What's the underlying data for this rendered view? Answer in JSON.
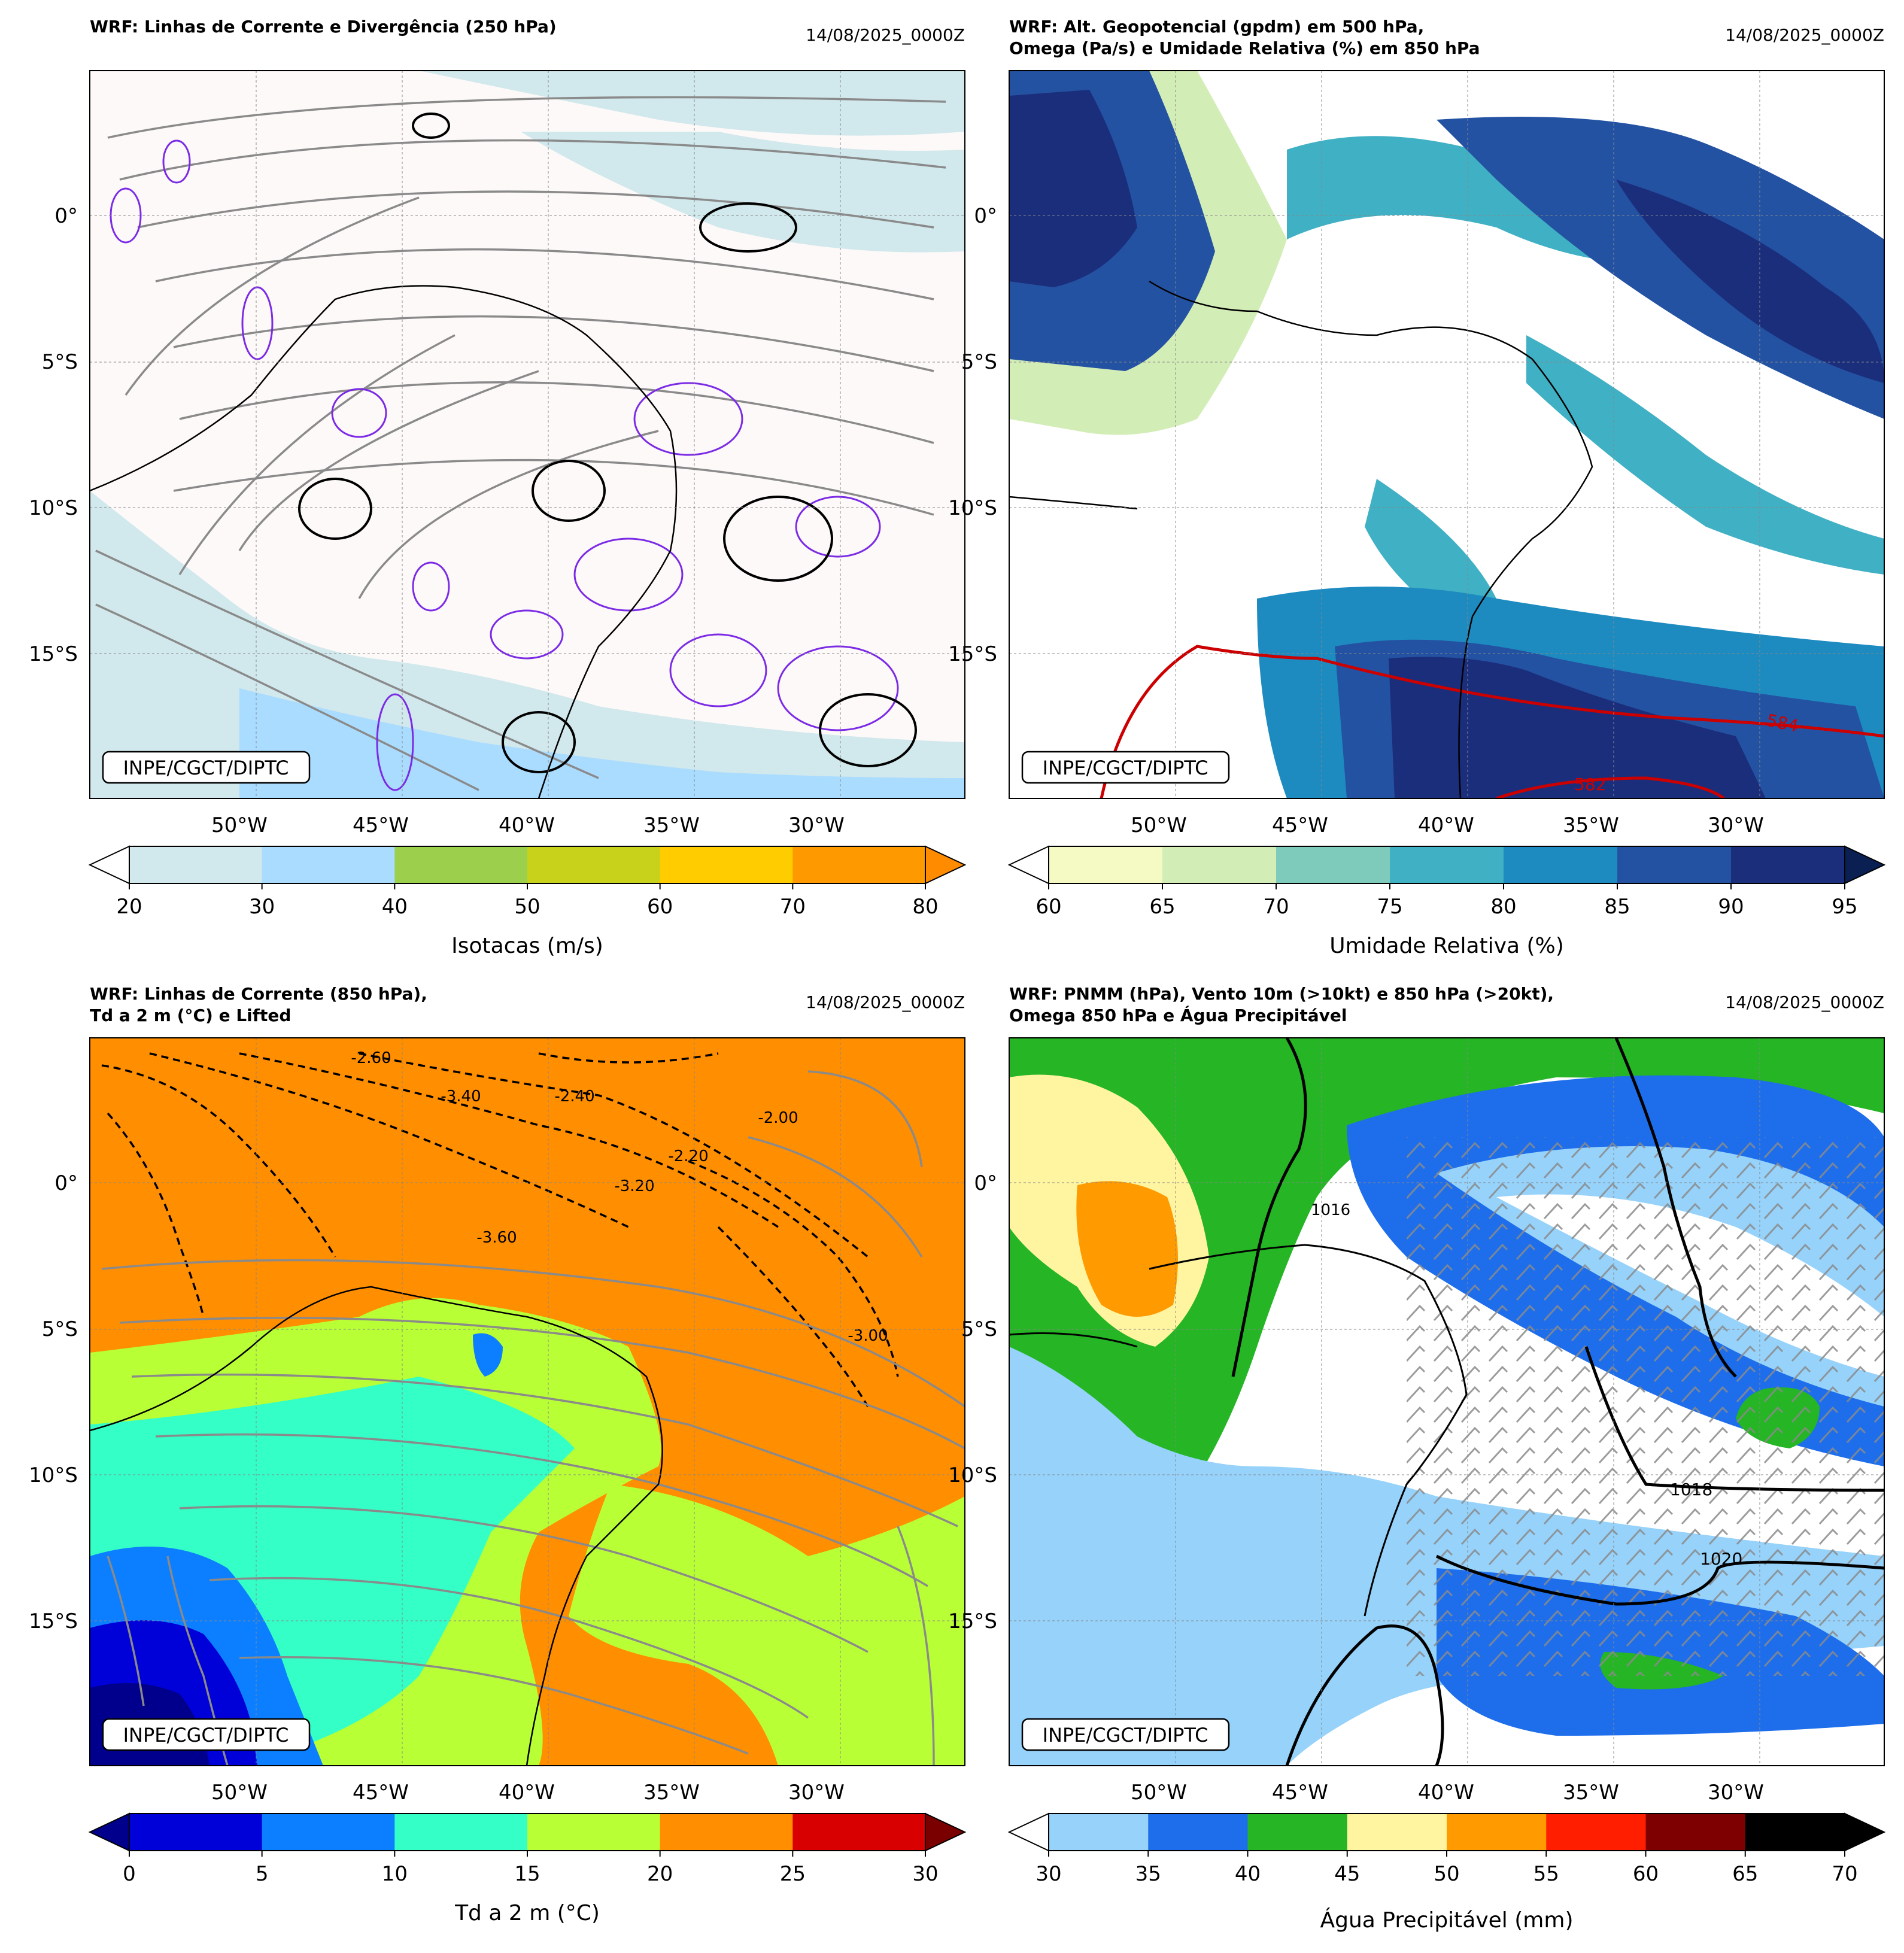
{
  "panels": [
    {
      "id": "p1",
      "title_lines": [
        "WRF: Linhas de Corrente e Divergência (250 hPa)"
      ],
      "datetime": "14/08/2025_0000Z",
      "credit": "INPE/CGCT/DIPTC",
      "lon_ticks": [
        "50°W",
        "45°W",
        "40°W",
        "35°W",
        "30°W"
      ],
      "lat_ticks": [
        "0°",
        "5°S",
        "10°S",
        "15°S"
      ],
      "colorbar": {
        "label": "Isotacas (m/s)",
        "ticks": [
          "20",
          "30",
          "40",
          "50",
          "60",
          "70",
          "80"
        ],
        "colors": [
          "#d1e8ec",
          "#aadcff",
          "#9ccf4c",
          "#c8d21a",
          "#ffcc00",
          "#ff9900"
        ],
        "under_color": "#ffffff",
        "over_color": "#ff8c00"
      }
    },
    {
      "id": "p2",
      "title_lines": [
        "WRF: Alt. Geopotencial (gpdm) em 500 hPa,",
        "Omega (Pa/s) e Umidade Relativa (%) em 850 hPa"
      ],
      "datetime": "14/08/2025_0000Z",
      "credit": "INPE/CGCT/DIPTC",
      "lon_ticks": [
        "50°W",
        "45°W",
        "40°W",
        "35°W",
        "30°W"
      ],
      "lat_ticks": [
        "0°",
        "5°S",
        "10°S",
        "15°S"
      ],
      "contour_labels": [
        "584",
        "582"
      ],
      "colorbar": {
        "label": "Umidade Relativa (%)",
        "ticks": [
          "60",
          "65",
          "70",
          "75",
          "80",
          "85",
          "90",
          "95"
        ],
        "colors": [
          "#f5f9c4",
          "#d3edb7",
          "#7ecbbb",
          "#40b0c4",
          "#1d8bc0",
          "#2452a2",
          "#1b2e7c"
        ],
        "under_color": "#ffffff",
        "over_color": "#0a1f52"
      }
    },
    {
      "id": "p3",
      "title_lines": [
        "WRF: Linhas de Corrente (850 hPa),",
        "Td a 2 m (°C) e Lifted"
      ],
      "datetime": "14/08/2025_0000Z",
      "credit": "INPE/CGCT/DIPTC",
      "lon_ticks": [
        "50°W",
        "45°W",
        "40°W",
        "35°W",
        "30°W"
      ],
      "lat_ticks": [
        "0°",
        "5°S",
        "10°S",
        "15°S"
      ],
      "contour_labels": [
        "-2.60",
        "-3.40",
        "-2.40",
        "-3.60",
        "-3.20",
        "-2.00",
        "-2.20",
        "-3.00"
      ],
      "colorbar": {
        "label": "Td a 2 m (°C)",
        "ticks": [
          "0",
          "5",
          "10",
          "15",
          "20",
          "25",
          "30"
        ],
        "colors": [
          "#0000d8",
          "#0b7fff",
          "#33ffc6",
          "#b9ff36",
          "#ff8e00",
          "#d80000"
        ],
        "under_color": "#00008c",
        "over_color": "#7a0000"
      }
    },
    {
      "id": "p4",
      "title_lines": [
        "WRF: PNMM (hPa), Vento 10m (>10kt) e 850 hPa (>20kt),",
        "Omega 850 hPa e Água Precipitável"
      ],
      "datetime": "14/08/2025_0000Z",
      "credit": "INPE/CGCT/DIPTC",
      "lon_ticks": [
        "50°W",
        "45°W",
        "40°W",
        "35°W",
        "30°W"
      ],
      "lat_ticks": [
        "0°",
        "5°S",
        "10°S",
        "15°S"
      ],
      "contour_labels": [
        "1018",
        "1020",
        "1016"
      ],
      "colorbar": {
        "label": "Água Precipitável (mm)",
        "ticks": [
          "30",
          "35",
          "40",
          "45",
          "50",
          "55",
          "60",
          "65",
          "70"
        ],
        "colors": [
          "#96d2fa",
          "#1e6eeb",
          "#25b525",
          "#fff5a0",
          "#ff9a00",
          "#ff1e00",
          "#7f0000",
          "#000000"
        ],
        "under_color": "#ffffff",
        "over_color": "#000000"
      }
    }
  ],
  "chart_data": [
    {
      "type": "heatmap",
      "title": "WRF: Linhas de Corrente e Divergência (250 hPa)",
      "variable": "Isotacas (m/s)",
      "levels": [
        20,
        30,
        40,
        50,
        60,
        70,
        80
      ],
      "xlim": [
        "55.5°W",
        "25.5°W"
      ],
      "ylim": [
        "20°S",
        "5°N"
      ],
      "overlays": [
        "streamlines 250 hPa",
        "divergence contours"
      ]
    },
    {
      "type": "heatmap",
      "title": "WRF: Alt. Geopotencial (gpdm) em 500 hPa, Omega (Pa/s) e Umidade Relativa (%) em 850 hPa",
      "variable": "Umidade Relativa (%)",
      "levels": [
        60,
        65,
        70,
        75,
        80,
        85,
        90,
        95
      ],
      "geopotential_contours_gpdm": [
        584,
        582
      ],
      "xlim": [
        "55.5°W",
        "25.5°W"
      ],
      "ylim": [
        "20°S",
        "5°N"
      ]
    },
    {
      "type": "heatmap",
      "title": "WRF: Linhas de Corrente (850 hPa), Td a 2 m (°C) e Lifted",
      "variable": "Td a 2 m (°C)",
      "levels": [
        0,
        5,
        10,
        15,
        20,
        25,
        30
      ],
      "lifted_contours": [
        -3.6,
        -3.4,
        -3.2,
        -3.0,
        -2.6,
        -2.4,
        -2.2,
        -2.0
      ],
      "xlim": [
        "55.5°W",
        "25.5°W"
      ],
      "ylim": [
        "20°S",
        "5°N"
      ]
    },
    {
      "type": "heatmap",
      "title": "WRF: PNMM (hPa), Vento 10m (>10kt) e 850 hPa (>20kt), Omega 850 hPa e Água Precipitável",
      "variable": "Água Precipitável (mm)",
      "levels": [
        30,
        35,
        40,
        45,
        50,
        55,
        60,
        65,
        70
      ],
      "pnmm_contours_hpa": [
        1016,
        1018,
        1020
      ],
      "xlim": [
        "55.5°W",
        "25.5°W"
      ],
      "ylim": [
        "20°S",
        "5°N"
      ]
    }
  ]
}
